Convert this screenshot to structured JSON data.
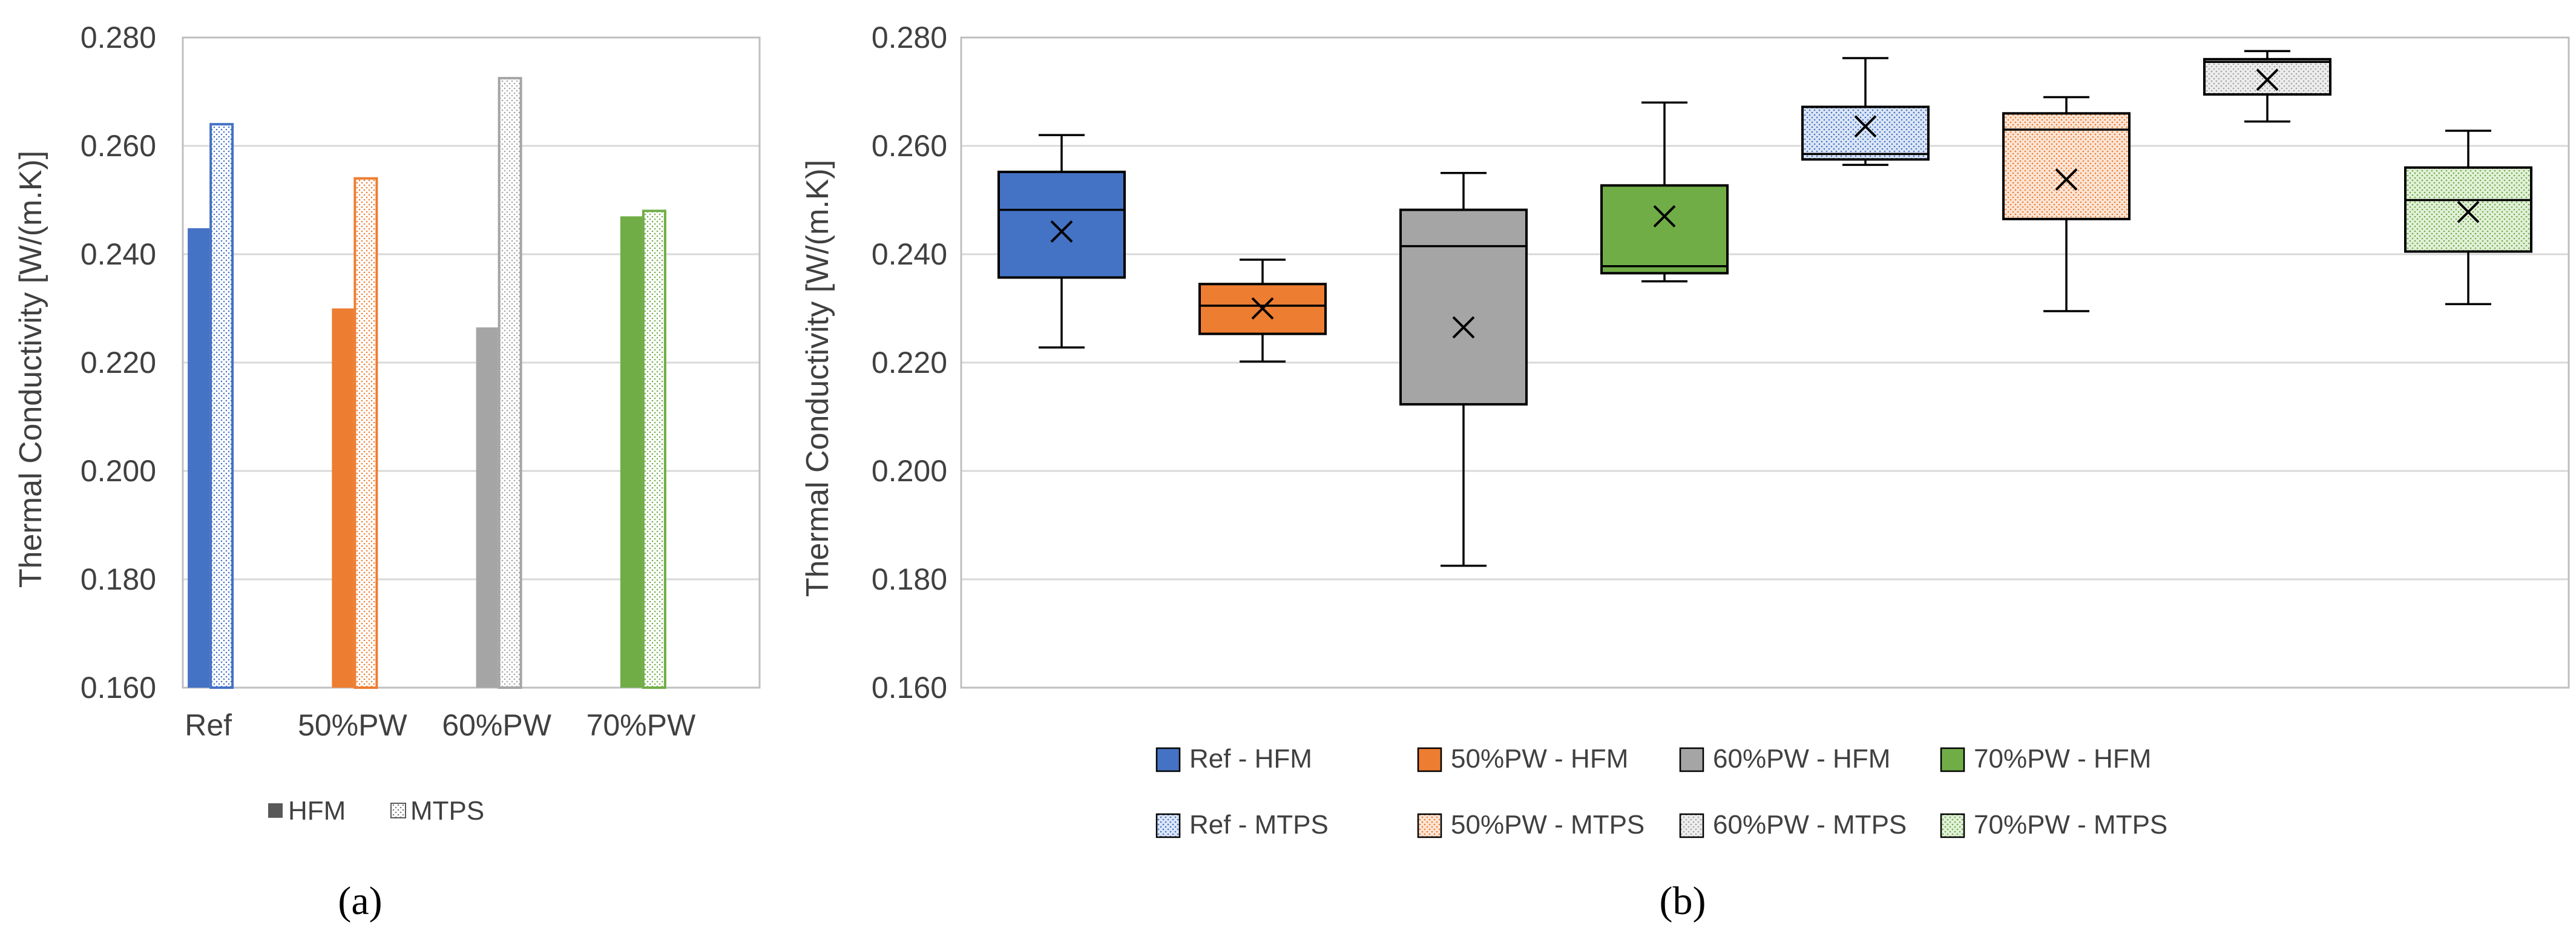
{
  "chart_data": [
    {
      "type": "bar",
      "ylabel": "Thermal Conductivity [W/(m.K)]",
      "ylim": [
        0.16,
        0.28
      ],
      "yticks": [
        "0.160",
        "0.180",
        "0.200",
        "0.220",
        "0.240",
        "0.260",
        "0.280"
      ],
      "categories": [
        "Ref",
        "50%PW",
        "60%PW",
        "70%PW"
      ],
      "series": [
        {
          "name": "HFM",
          "pattern": "solid",
          "values": [
            0.2448,
            0.23,
            0.2265,
            0.247
          ]
        },
        {
          "name": "MTPS",
          "pattern": "dotted",
          "values": [
            0.264,
            0.254,
            0.2725,
            0.248
          ]
        }
      ],
      "category_colors": [
        "#4472C4",
        "#ED7D31",
        "#A5A5A5",
        "#70AD47"
      ],
      "grid": true,
      "legend": "bottom",
      "legend_labels": [
        "HFM",
        "MTPS"
      ],
      "panel_label": "(a)"
    },
    {
      "type": "box",
      "ylabel": "Thermal Conductivity [W/(m.K)]",
      "ylim": [
        0.16,
        0.28
      ],
      "yticks": [
        "0.160",
        "0.180",
        "0.200",
        "0.220",
        "0.240",
        "0.260",
        "0.280"
      ],
      "grid": true,
      "legend": "bottom",
      "panel_label": "(b)",
      "boxes": [
        {
          "name": "Ref - HFM",
          "fill": "#4472C4",
          "pattern": false,
          "min": 0.2228,
          "q1": 0.2357,
          "median": 0.2482,
          "q3": 0.2552,
          "max": 0.262,
          "mean": 0.2442
        },
        {
          "name": "50%PW - HFM",
          "fill": "#ED7D31",
          "pattern": false,
          "min": 0.2202,
          "q1": 0.2253,
          "median": 0.2305,
          "q3": 0.2345,
          "max": 0.239,
          "mean": 0.23
        },
        {
          "name": "60%PW - HFM",
          "fill": "#A5A5A5",
          "pattern": false,
          "min": 0.1825,
          "q1": 0.2123,
          "median": 0.2415,
          "q3": 0.2482,
          "max": 0.255,
          "mean": 0.2265
        },
        {
          "name": "70%PW - HFM",
          "fill": "#70AD47",
          "pattern": false,
          "min": 0.235,
          "q1": 0.2365,
          "median": 0.2378,
          "q3": 0.2527,
          "max": 0.268,
          "mean": 0.247
        },
        {
          "name": "Ref - MTPS",
          "fill": "#DCE6F6",
          "dot": "#4472C4",
          "pattern": true,
          "min": 0.2565,
          "q1": 0.2575,
          "median": 0.2585,
          "q3": 0.2672,
          "max": 0.2762,
          "mean": 0.2636
        },
        {
          "name": "50%PW - MTPS",
          "fill": "#FBE5D6",
          "dot": "#ED7D31",
          "pattern": true,
          "min": 0.2295,
          "q1": 0.2465,
          "median": 0.263,
          "q3": 0.266,
          "max": 0.269,
          "mean": 0.2538
        },
        {
          "name": "60%PW - MTPS",
          "fill": "#EDEDED",
          "dot": "#A5A5A5",
          "pattern": true,
          "min": 0.2645,
          "q1": 0.2695,
          "median": 0.2755,
          "q3": 0.276,
          "max": 0.2775,
          "mean": 0.2722
        },
        {
          "name": "70%PW - MTPS",
          "fill": "#E2F0D9",
          "dot": "#70AD47",
          "pattern": true,
          "min": 0.2308,
          "q1": 0.2405,
          "median": 0.25,
          "q3": 0.256,
          "max": 0.2628,
          "mean": 0.2478
        }
      ],
      "legend_rows": [
        [
          "Ref - HFM",
          "50%PW - HFM",
          "60%PW - HFM",
          "70%PW - HFM"
        ],
        [
          "Ref - MTPS",
          "50%PW - MTPS",
          "60%PW - MTPS",
          "70%PW - MTPS"
        ]
      ]
    }
  ]
}
